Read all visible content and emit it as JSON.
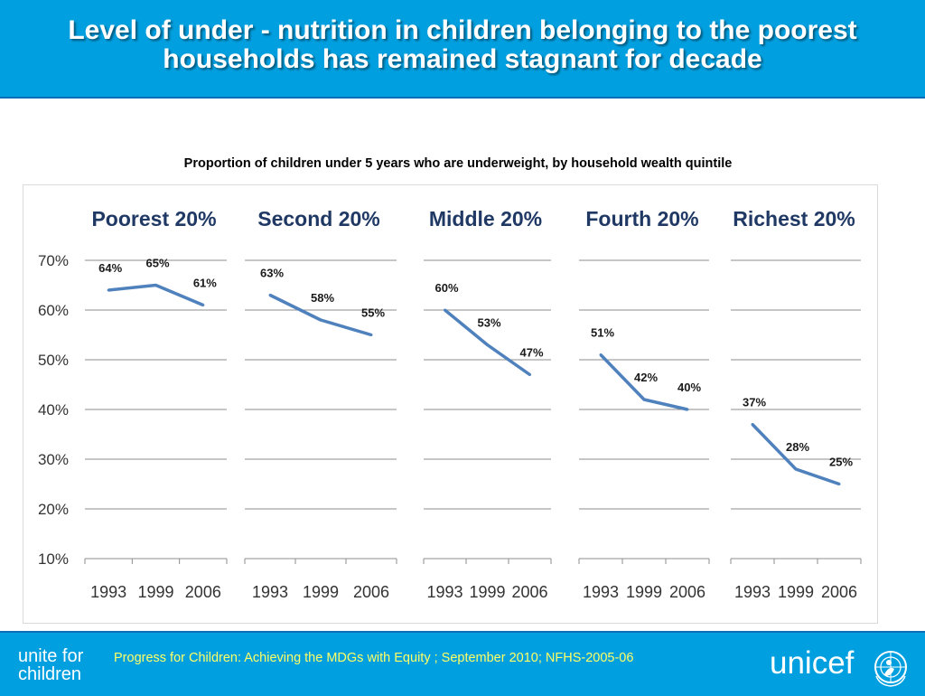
{
  "header": {
    "title": "Level of under - nutrition in children belonging to the poorest households has remained stagnant for decade"
  },
  "subtitle": "Proportion of children  under 5 years  who are underweight, by household wealth quintile",
  "footer": {
    "left_line1": "unite for",
    "left_line2": "children",
    "source": "Progress for Children: Achieving the MDGs with Equity ; September 2010; NFHS-2005-06",
    "logo_text": "unicef"
  },
  "colors": {
    "brand_blue": "#009fdf",
    "series_line": "#4f81bd",
    "source_text": "#ffff66"
  },
  "chart_data": {
    "type": "line",
    "ylim": [
      10,
      70
    ],
    "yticks": [
      10,
      20,
      30,
      40,
      50,
      60,
      70
    ],
    "ytick_labels": [
      "10%",
      "20%",
      "30%",
      "40%",
      "50%",
      "60%",
      "70%"
    ],
    "grid": true,
    "panels": [
      {
        "title": "Poorest 20%",
        "categories": [
          "1993",
          "1999",
          "2006"
        ],
        "values": [
          64,
          65,
          61
        ],
        "labels": [
          "64%",
          "65%",
          "61%"
        ]
      },
      {
        "title": "Second 20%",
        "categories": [
          "1993",
          "1999",
          "2006"
        ],
        "values": [
          63,
          58,
          55
        ],
        "labels": [
          "63%",
          "58%",
          "55%"
        ]
      },
      {
        "title": "Middle 20%",
        "categories": [
          "1993",
          "1999",
          "2006"
        ],
        "values": [
          60,
          53,
          47
        ],
        "labels": [
          "60%",
          "53%",
          "47%"
        ]
      },
      {
        "title": "Fourth 20%",
        "categories": [
          "1993",
          "1999",
          "2006"
        ],
        "values": [
          51,
          42,
          40
        ],
        "labels": [
          "51%",
          "42%",
          "40%"
        ]
      },
      {
        "title": "Richest 20%",
        "categories": [
          "1993",
          "1999",
          "2006"
        ],
        "values": [
          37,
          28,
          25
        ],
        "labels": [
          "37%",
          "28%",
          "25%"
        ]
      }
    ]
  }
}
